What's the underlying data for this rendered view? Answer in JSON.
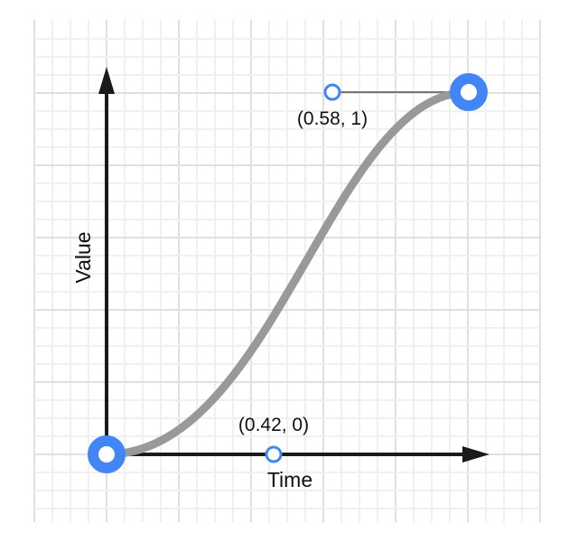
{
  "diagram": {
    "axis_x_label": "Time",
    "axis_y_label": "Value",
    "control_point_1": {
      "label": "(0.42, 0)"
    },
    "control_point_2": {
      "label": "(0.58, 1)"
    },
    "colors": {
      "curve": "#999999",
      "point": "#4285f4",
      "axis": "#1a1a1a",
      "grid_minor": "#f0f0f0",
      "grid_major": "#e0e0e0"
    }
  }
}
